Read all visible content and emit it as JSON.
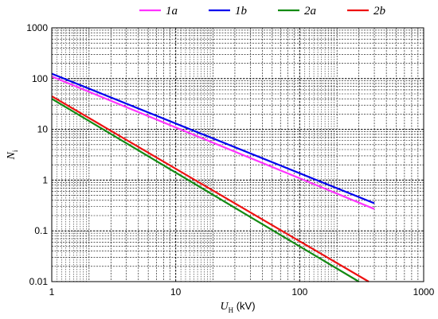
{
  "chart_data": {
    "type": "line",
    "x_scale": "log",
    "y_scale": "log",
    "xlim": [
      1,
      1000
    ],
    "ylim": [
      0.01,
      1000
    ],
    "x_ticks": [
      "1",
      "10",
      "100",
      "1000"
    ],
    "y_ticks": [
      "0.01",
      "0.1",
      "1",
      "10",
      "100",
      "1000"
    ],
    "xlabel": {
      "main": "U",
      "sub": "H",
      "unit": " (kV)"
    },
    "ylabel": {
      "main": "N",
      "sub": "i"
    },
    "grid": true,
    "legend_position": "top",
    "series": [
      {
        "name": "1a",
        "color": "#ff33ff",
        "x": [
          1,
          400
        ],
        "y": [
          110,
          0.27
        ]
      },
      {
        "name": "1b",
        "color": "#0000ee",
        "x": [
          1,
          400
        ],
        "y": [
          125,
          0.35
        ]
      },
      {
        "name": "2a",
        "color": "#138a13",
        "x": [
          1,
          300
        ],
        "y": [
          40,
          0.01
        ]
      },
      {
        "name": "2b",
        "color": "#ee1111",
        "x": [
          1,
          360
        ],
        "y": [
          45,
          0.01
        ]
      }
    ]
  }
}
